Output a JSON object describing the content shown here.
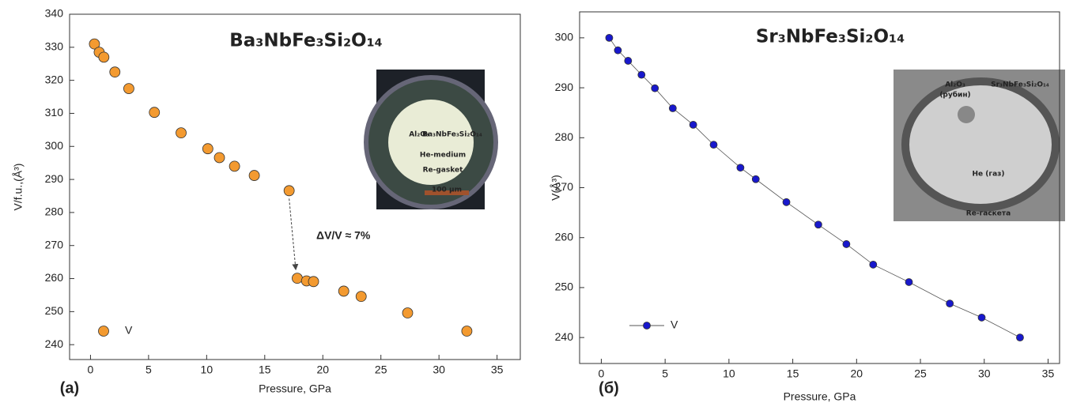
{
  "chart_data": [
    {
      "type": "scatter",
      "panel_label": "(a)",
      "title": "Ba₃NbFe₃Si₂O₁₄",
      "x_label": "Pressure, GPa",
      "y_label": "V/f.u.,(Å³)",
      "annotation": "ΔV/V ≈ 7%",
      "connect": false,
      "inset_labels": [
        "Al₂O₃",
        "Ba₃NbFe₃Si₂O₁₄",
        "He-medium",
        "Re-gasket",
        "100 μm"
      ],
      "xlim": [
        -1.8,
        37
      ],
      "ylim": [
        235.5,
        340
      ],
      "xticks": [
        0,
        5,
        10,
        15,
        20,
        25,
        30,
        35
      ],
      "yticks": [
        240,
        250,
        260,
        270,
        280,
        290,
        300,
        310,
        320,
        330,
        340
      ],
      "series": [
        {
          "name": "V",
          "color": "#f39a30",
          "x": [
            0.34,
            0.75,
            1.15,
            2.1,
            3.3,
            5.5,
            7.8,
            10.1,
            11.1,
            12.4,
            14.1,
            17.1,
            17.8,
            18.6,
            19.2,
            21.8,
            23.3,
            27.3,
            32.4
          ],
          "values": [
            331.0,
            328.5,
            327.0,
            322.5,
            317.5,
            310.3,
            304.1,
            299.3,
            296.6,
            294.0,
            291.2,
            286.6,
            260.1,
            259.3,
            259.1,
            256.2,
            254.6,
            249.6,
            244.1
          ]
        }
      ]
    },
    {
      "type": "scatter",
      "panel_label": "(б)",
      "title": "Sr₃NbFe₃Si₂O₁₄",
      "x_label": "Pressure, GPa",
      "y_label": "V(Å³)",
      "connect": true,
      "inset_labels": [
        "Al₂O₃",
        "(рубин)",
        "Sr₃NbFe₃Si₂O₁₄",
        "He (газ)",
        "Re-гаскета"
      ],
      "xlim": [
        -1.7,
        35.9
      ],
      "ylim": [
        234.8,
        305.2
      ],
      "xticks": [
        0,
        5,
        10,
        15,
        20,
        25,
        30,
        35
      ],
      "yticks": [
        240,
        250,
        260,
        270,
        280,
        290,
        300
      ],
      "series": [
        {
          "name": "V",
          "color": "#1818cc",
          "x": [
            0.62,
            1.3,
            2.1,
            3.15,
            4.2,
            5.6,
            7.2,
            8.8,
            10.9,
            12.1,
            14.5,
            17.0,
            19.2,
            21.3,
            24.1,
            27.3,
            29.8,
            32.8
          ],
          "values": [
            300.0,
            297.5,
            295.4,
            292.6,
            289.9,
            285.9,
            282.6,
            278.6,
            274.0,
            271.7,
            267.1,
            262.6,
            258.7,
            254.6,
            251.1,
            246.8,
            244.0,
            240.0
          ]
        }
      ]
    }
  ]
}
